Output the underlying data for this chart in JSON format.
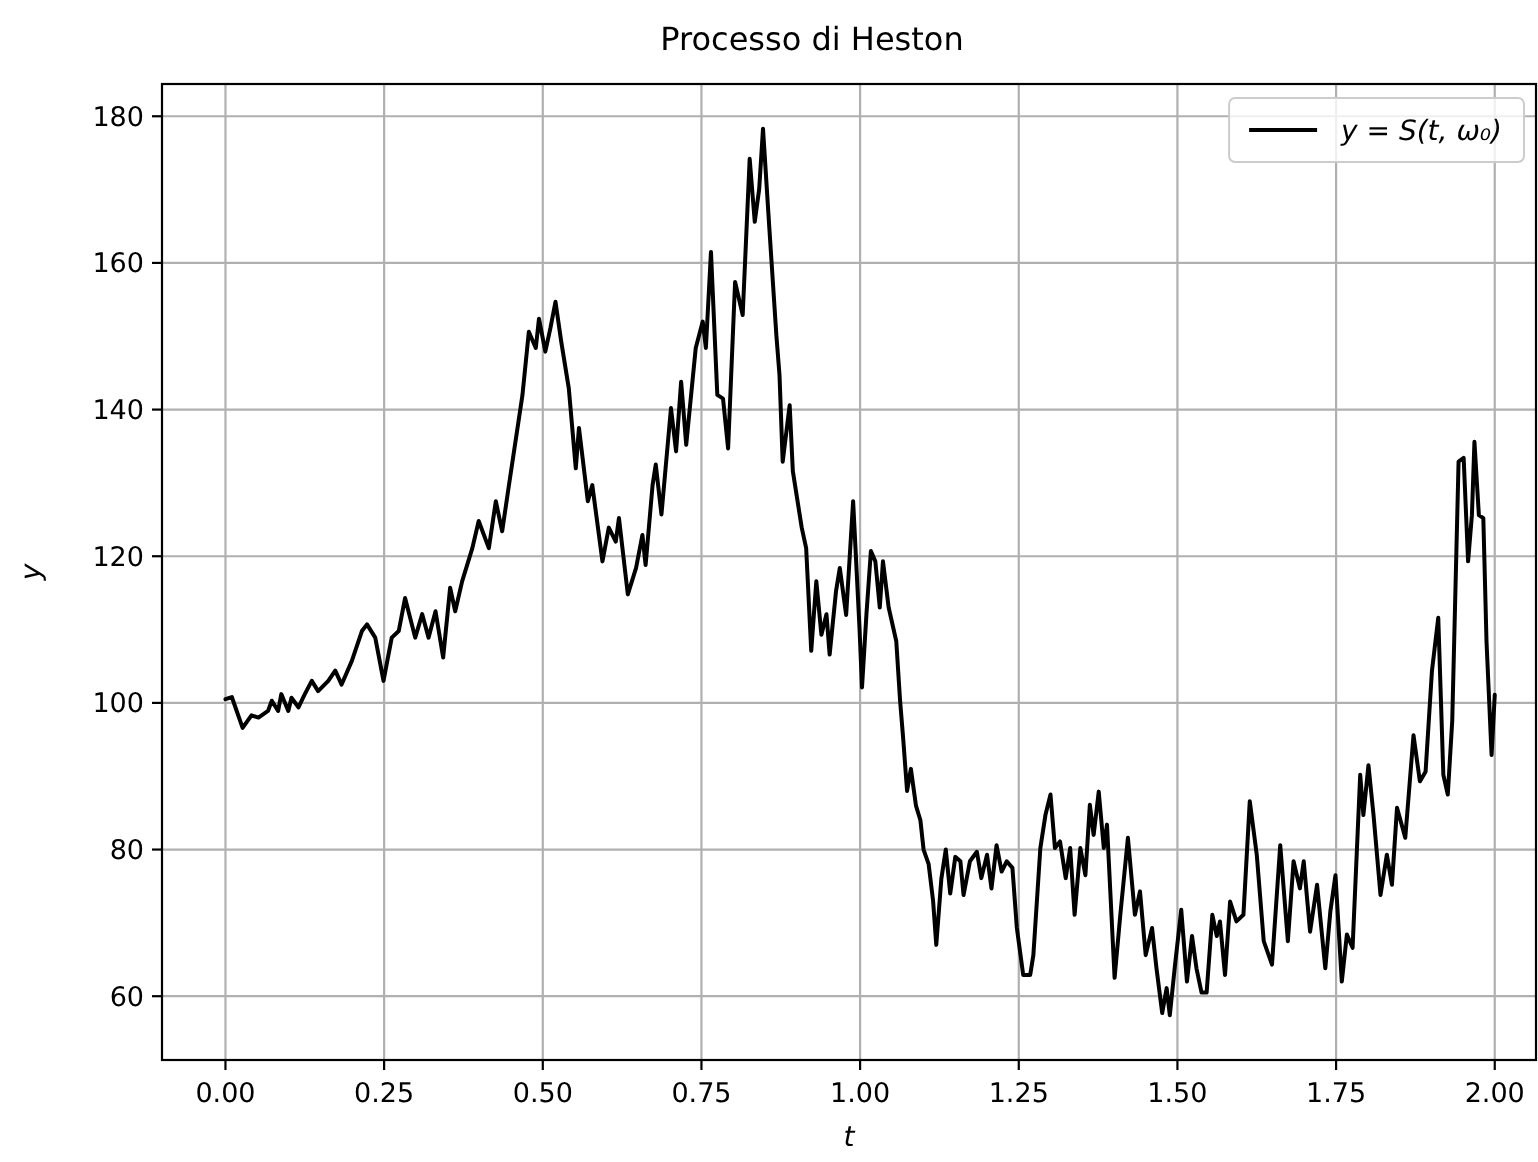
{
  "chart_data": {
    "type": "line",
    "title": "Processo di Heston",
    "xlabel": "t",
    "ylabel": "y",
    "x": [
      0,
      0.01,
      0.027,
      0.041,
      0.052,
      0.067,
      0.073,
      0.083,
      0.088,
      0.099,
      0.104,
      0.115,
      0.125,
      0.136,
      0.146,
      0.162,
      0.173,
      0.183,
      0.199,
      0.215,
      0.223,
      0.236,
      0.249,
      0.262,
      0.273,
      0.283,
      0.299,
      0.31,
      0.32,
      0.331,
      0.343,
      0.354,
      0.362,
      0.373,
      0.389,
      0.399,
      0.415,
      0.426,
      0.436,
      0.446,
      0.468,
      0.478,
      0.489,
      0.494,
      0.504,
      0.512,
      0.52,
      0.529,
      0.541,
      0.552,
      0.557,
      0.571,
      0.578,
      0.594,
      0.604,
      0.615,
      0.62,
      0.634,
      0.647,
      0.657,
      0.662,
      0.673,
      0.678,
      0.687,
      0.694,
      0.702,
      0.71,
      0.718,
      0.726,
      0.741,
      0.752,
      0.757,
      0.765,
      0.775,
      0.784,
      0.792,
      0.803,
      0.815,
      0.826,
      0.834,
      0.841,
      0.847,
      0.857,
      0.868,
      0.873,
      0.878,
      0.889,
      0.894,
      0.908,
      0.915,
      0.923,
      0.931,
      0.939,
      0.947,
      0.952,
      0.962,
      0.968,
      0.978,
      0.989,
      0.999,
      1.003,
      1.01,
      1.017,
      1.024,
      1.031,
      1.036,
      1.045,
      1.057,
      1.063,
      1.068,
      1.074,
      1.08,
      1.088,
      1.095,
      1.1,
      1.108,
      1.115,
      1.12,
      1.128,
      1.135,
      1.142,
      1.15,
      1.158,
      1.163,
      1.173,
      1.184,
      1.191,
      1.2,
      1.207,
      1.215,
      1.223,
      1.231,
      1.24,
      1.247,
      1.257,
      1.268,
      1.273,
      1.284,
      1.292,
      1.3,
      1.307,
      1.315,
      1.324,
      1.331,
      1.338,
      1.347,
      1.355,
      1.362,
      1.368,
      1.376,
      1.384,
      1.389,
      1.401,
      1.41,
      1.422,
      1.433,
      1.441,
      1.45,
      1.46,
      1.467,
      1.476,
      1.483,
      1.488,
      1.496,
      1.506,
      1.515,
      1.523,
      1.53,
      1.538,
      1.546,
      1.555,
      1.562,
      1.567,
      1.575,
      1.583,
      1.593,
      1.604,
      1.614,
      1.625,
      1.636,
      1.649,
      1.662,
      1.674,
      1.683,
      1.693,
      1.699,
      1.709,
      1.72,
      1.733,
      1.741,
      1.749,
      1.759,
      1.767,
      1.776,
      1.788,
      1.793,
      1.801,
      1.809,
      1.82,
      1.83,
      1.838,
      1.846,
      1.859,
      1.872,
      1.882,
      1.891,
      1.901,
      1.911,
      1.919,
      1.926,
      1.933,
      1.943,
      1.951,
      1.958,
      1.964,
      1.968,
      1.975,
      1.982,
      1.987,
      1.995,
      2.0
    ],
    "series": [
      {
        "name": "y = S(t, ω₀)",
        "color": "#000000",
        "values": [
          100.5,
          100.8,
          96.6,
          98.3,
          98,
          98.9,
          100.3,
          98.9,
          101.2,
          98.9,
          100.7,
          99.4,
          101.2,
          103,
          101.6,
          103,
          104.4,
          102.5,
          105.7,
          109.8,
          110.7,
          108.9,
          103,
          108.9,
          109.8,
          114.3,
          108.9,
          112.1,
          108.9,
          112.5,
          106.2,
          115.7,
          112.5,
          116.6,
          121.1,
          124.8,
          121.1,
          127.5,
          123.4,
          129.3,
          142,
          150.6,
          148.4,
          152.4,
          147.9,
          151.1,
          154.7,
          149.3,
          142.9,
          132,
          137.5,
          127.5,
          129.7,
          119.3,
          123.9,
          122,
          125.2,
          114.8,
          118.4,
          122.9,
          118.8,
          129.7,
          132.5,
          125.7,
          132.5,
          140.2,
          134.3,
          143.8,
          135.2,
          148.4,
          152,
          148.4,
          161.5,
          142,
          141.5,
          134.7,
          157.4,
          152.9,
          174.2,
          165.6,
          170.1,
          178.3,
          164.7,
          150.2,
          144.7,
          132.9,
          140.6,
          131.6,
          123.9,
          121.1,
          107.1,
          116.6,
          109.3,
          112.1,
          106.6,
          115.2,
          118.4,
          112,
          127.5,
          110.3,
          102.1,
          112.1,
          120.7,
          119.3,
          113,
          119.3,
          113,
          108.4,
          100.3,
          95,
          88,
          91,
          86,
          84,
          80,
          78,
          73,
          67,
          76,
          80,
          74,
          79,
          78.4,
          73.8,
          78.4,
          79.7,
          76.1,
          79.3,
          74.7,
          80.6,
          77,
          78.4,
          77.5,
          69.3,
          62.9,
          62.9,
          65.6,
          80.2,
          84.7,
          87.5,
          80.2,
          81.1,
          76.1,
          80.2,
          71.1,
          80.2,
          76.5,
          86.1,
          82,
          87.9,
          80.2,
          83.4,
          62.5,
          71.1,
          81.6,
          71.1,
          74.3,
          65.6,
          69.3,
          63.8,
          57.7,
          61.1,
          57.4,
          64.1,
          71.8,
          62,
          68.2,
          63.8,
          60.5,
          60.5,
          71.1,
          68.2,
          70.2,
          62.9,
          72.9,
          70.2,
          71.1,
          86.6,
          79.3,
          67.5,
          64.3,
          80.6,
          67.5,
          78.4,
          74.7,
          78.4,
          68.8,
          75.2,
          63.8,
          71.6,
          76.5,
          62,
          68.4,
          66.6,
          90.2,
          84.7,
          91.5,
          84.7,
          73.8,
          79.3,
          75.2,
          85.7,
          81.6,
          95.6,
          89.3,
          90.6,
          104.3,
          111.6,
          90.2,
          87.5,
          97.5,
          132.9,
          133.4,
          119.3,
          125.6,
          135.6,
          125.6,
          125.2,
          108.4,
          92.9,
          101.1
        ]
      }
    ],
    "xlim": [
      -0.1,
      2.065
    ],
    "ylim": [
      51.3,
      184.4
    ],
    "xticks": [
      {
        "value": 0,
        "label": "0.00"
      },
      {
        "value": 0.25,
        "label": "0.25"
      },
      {
        "value": 0.5,
        "label": "0.50"
      },
      {
        "value": 0.75,
        "label": "0.75"
      },
      {
        "value": 1,
        "label": "1.00"
      },
      {
        "value": 1.25,
        "label": "1.25"
      },
      {
        "value": 1.5,
        "label": "1.50"
      },
      {
        "value": 1.75,
        "label": "1.75"
      },
      {
        "value": 2,
        "label": "2.00"
      }
    ],
    "yticks": [
      60,
      80,
      100,
      120,
      140,
      160,
      180
    ],
    "grid": true,
    "legend": "top right",
    "line_style": "solid"
  }
}
